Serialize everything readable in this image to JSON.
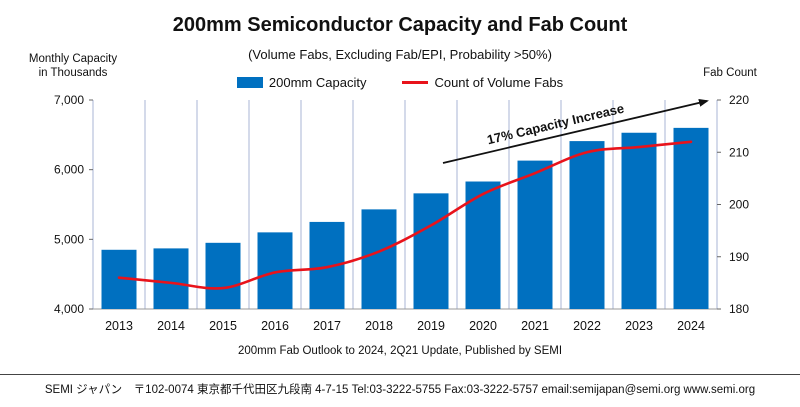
{
  "chart_data": {
    "type": "bar",
    "title": "200mm Semiconductor Capacity and Fab Count",
    "subtitle": "(Volume Fabs, Excluding Fab/EPI, Probability >50%)",
    "ylabel_left": [
      "Monthly Capacity",
      "in Thousands"
    ],
    "ylabel_right": "Fab Count",
    "categories": [
      "2013",
      "2014",
      "2015",
      "2016",
      "2017",
      "2018",
      "2019",
      "2020",
      "2021",
      "2022",
      "2023",
      "2024"
    ],
    "series": [
      {
        "name": "200mm Capacity",
        "kind": "bar",
        "axis": "left",
        "color": "#0070C0",
        "values": [
          4850,
          4870,
          4950,
          5100,
          5250,
          5430,
          5660,
          5830,
          6130,
          6410,
          6530,
          6600
        ]
      },
      {
        "name": "Count of Volume Fabs",
        "kind": "line",
        "axis": "right",
        "color": "#E8131B",
        "values": [
          186,
          185,
          184,
          187,
          188,
          191,
          196,
          202,
          206,
          210,
          211,
          212
        ]
      }
    ],
    "ylim_left": [
      4000,
      7000
    ],
    "yticks_left": [
      "4,000",
      "5,000",
      "6,000",
      "7,000"
    ],
    "yticks_left_values": [
      4000,
      5000,
      6000,
      7000
    ],
    "ylim_right": [
      180,
      220
    ],
    "yticks_right": [
      180,
      190,
      200,
      210,
      220
    ],
    "annotation": "17% Capacity Increase",
    "vertical_gridlines": true,
    "legend_position": "top"
  },
  "note": "200mm Fab Outlook to 2024, 2Q21 Update, Published by SEMI",
  "footer": "SEMI ジャパン　〒102-0074  東京都千代田区九段南 4-7-15   Tel:03-3222-5755    Fax:03-3222-5757    email:semijapan@semi.org    www.semi.org"
}
